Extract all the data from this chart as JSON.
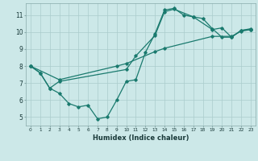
{
  "xlabel": "Humidex (Indice chaleur)",
  "bg_color": "#cce8e8",
  "grid_color": "#aacccc",
  "line_color": "#1a7a6e",
  "xlim": [
    -0.5,
    23.5
  ],
  "ylim": [
    4.5,
    11.7
  ],
  "xticks": [
    0,
    1,
    2,
    3,
    4,
    5,
    6,
    7,
    8,
    9,
    10,
    11,
    12,
    13,
    14,
    15,
    16,
    17,
    18,
    19,
    20,
    21,
    22,
    23
  ],
  "yticks": [
    5,
    6,
    7,
    8,
    9,
    10,
    11
  ],
  "line1_x": [
    0,
    1,
    2,
    3,
    4,
    5,
    6,
    7,
    8,
    9,
    10,
    11,
    12,
    13,
    14,
    15,
    16,
    17,
    18,
    19,
    20,
    21,
    22,
    23
  ],
  "line1_y": [
    8.0,
    7.6,
    6.7,
    6.4,
    5.8,
    5.6,
    5.7,
    4.9,
    5.0,
    6.0,
    7.1,
    7.2,
    8.8,
    9.9,
    11.3,
    11.4,
    11.0,
    10.9,
    10.8,
    10.2,
    9.7,
    9.7,
    10.1,
    10.2
  ],
  "line2_x": [
    0,
    1,
    2,
    3,
    10,
    11,
    13,
    14,
    15,
    17,
    19,
    20,
    21,
    22,
    23
  ],
  "line2_y": [
    8.0,
    7.6,
    6.7,
    7.1,
    7.8,
    8.6,
    9.8,
    11.2,
    11.35,
    10.9,
    10.15,
    10.25,
    9.7,
    10.1,
    10.15
  ],
  "line3_x": [
    0,
    3,
    9,
    10,
    13,
    14,
    19,
    21,
    22,
    23
  ],
  "line3_y": [
    8.0,
    7.2,
    8.0,
    8.15,
    8.85,
    9.05,
    9.75,
    9.75,
    10.05,
    10.15
  ]
}
